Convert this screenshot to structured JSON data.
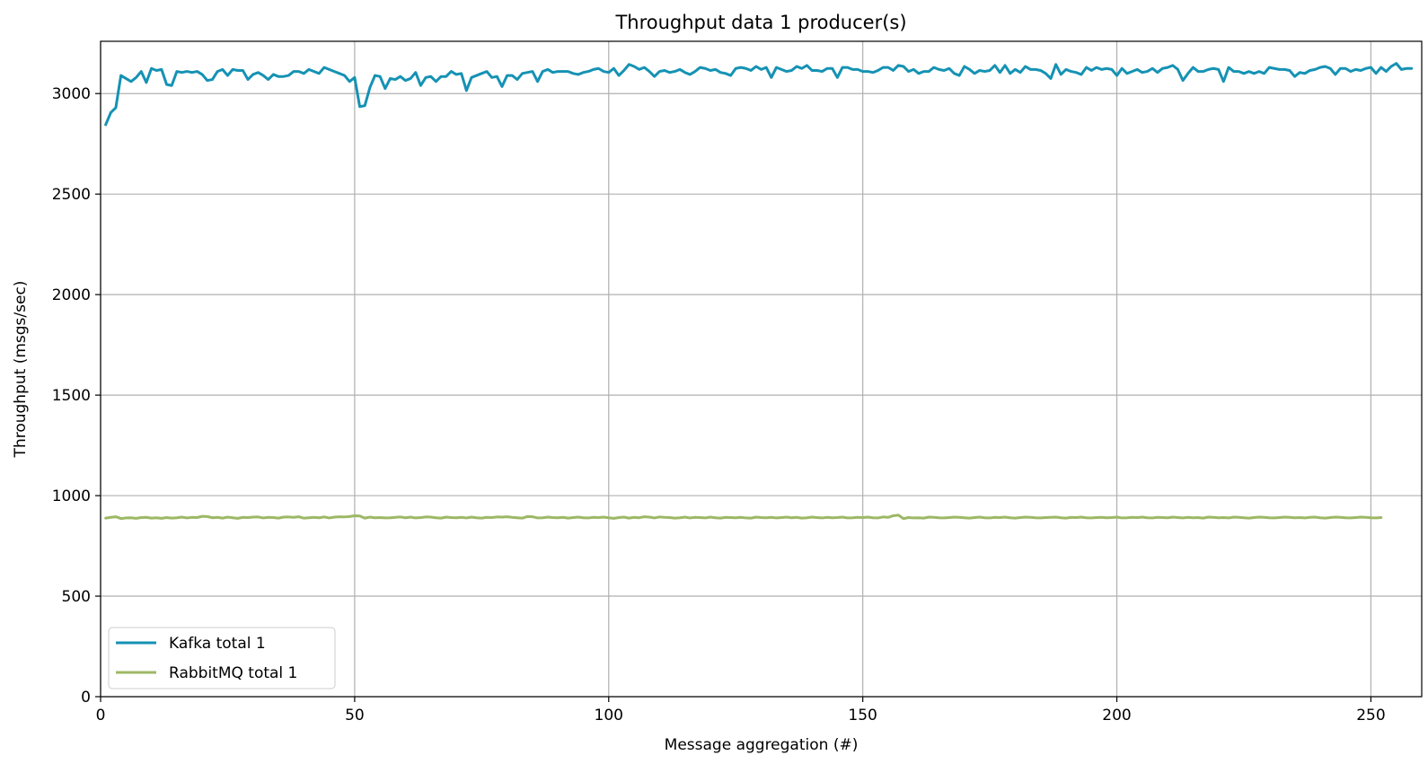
{
  "chart_data": {
    "type": "line",
    "title": "Throughput data 1 producer(s)",
    "xlabel": "Message aggregation (#)",
    "ylabel": "Throughput (msgs/sec)",
    "xlim": [
      0,
      260
    ],
    "ylim": [
      0,
      3260
    ],
    "xticks": [
      0,
      50,
      100,
      150,
      200,
      250
    ],
    "yticks": [
      0,
      500,
      1000,
      1500,
      2000,
      2500,
      3000
    ],
    "grid": true,
    "legend": "lower-left",
    "x_start": 1,
    "series": [
      {
        "name": "Kafka total 1",
        "color": "#1592b4",
        "values": [
          2845,
          2905,
          2930,
          3090,
          3075,
          3060,
          3080,
          3110,
          3055,
          3125,
          3115,
          3120,
          3045,
          3040,
          3110,
          3105,
          3110,
          3105,
          3110,
          3095,
          3065,
          3070,
          3110,
          3120,
          3090,
          3120,
          3115,
          3115,
          3070,
          3095,
          3105,
          3090,
          3070,
          3095,
          3085,
          3085,
          3090,
          3110,
          3110,
          3100,
          3120,
          3110,
          3100,
          3130,
          3120,
          3110,
          3100,
          3090,
          3060,
          3080,
          2935,
          2940,
          3030,
          3090,
          3085,
          3025,
          3075,
          3070,
          3085,
          3065,
          3075,
          3105,
          3040,
          3080,
          3085,
          3060,
          3085,
          3085,
          3110,
          3095,
          3100,
          3015,
          3080,
          3090,
          3100,
          3110,
          3080,
          3085,
          3035,
          3090,
          3090,
          3070,
          3100,
          3105,
          3110,
          3060,
          3110,
          3120,
          3105,
          3110,
          3110,
          3110,
          3100,
          3095,
          3105,
          3110,
          3120,
          3125,
          3110,
          3105,
          3125,
          3090,
          3115,
          3145,
          3135,
          3120,
          3130,
          3110,
          3085,
          3110,
          3115,
          3105,
          3110,
          3120,
          3105,
          3095,
          3110,
          3130,
          3125,
          3115,
          3120,
          3105,
          3100,
          3090,
          3125,
          3130,
          3125,
          3115,
          3135,
          3120,
          3130,
          3080,
          3130,
          3120,
          3110,
          3115,
          3135,
          3125,
          3140,
          3115,
          3115,
          3110,
          3125,
          3125,
          3080,
          3130,
          3130,
          3120,
          3120,
          3110,
          3110,
          3105,
          3115,
          3130,
          3130,
          3115,
          3140,
          3135,
          3110,
          3120,
          3100,
          3110,
          3110,
          3130,
          3120,
          3115,
          3125,
          3100,
          3090,
          3135,
          3120,
          3100,
          3115,
          3110,
          3115,
          3140,
          3105,
          3140,
          3100,
          3120,
          3105,
          3135,
          3120,
          3120,
          3115,
          3100,
          3075,
          3145,
          3095,
          3120,
          3110,
          3105,
          3095,
          3130,
          3115,
          3130,
          3120,
          3125,
          3120,
          3090,
          3125,
          3100,
          3110,
          3120,
          3105,
          3110,
          3125,
          3105,
          3125,
          3130,
          3140,
          3120,
          3065,
          3100,
          3130,
          3110,
          3110,
          3120,
          3125,
          3120,
          3060,
          3130,
          3110,
          3110,
          3100,
          3110,
          3100,
          3110,
          3100,
          3130,
          3125,
          3120,
          3120,
          3115,
          3085,
          3105,
          3100,
          3115,
          3120,
          3130,
          3135,
          3125,
          3095,
          3125,
          3125,
          3110,
          3120,
          3115,
          3125,
          3130,
          3100,
          3130,
          3110,
          3135,
          3150,
          3120,
          3125,
          3125
        ]
      },
      {
        "name": "RabbitMQ total 1",
        "color": "#9db865",
        "values": [
          888,
          892,
          895,
          886,
          889,
          890,
          887,
          891,
          892,
          888,
          890,
          887,
          891,
          888,
          890,
          893,
          889,
          892,
          891,
          897,
          896,
          890,
          892,
          888,
          893,
          890,
          887,
          892,
          891,
          893,
          894,
          889,
          892,
          891,
          888,
          893,
          894,
          892,
          895,
          888,
          890,
          892,
          890,
          894,
          889,
          893,
          895,
          894,
          896,
          900,
          899,
          888,
          893,
          890,
          891,
          889,
          890,
          892,
          894,
          890,
          893,
          889,
          891,
          894,
          893,
          890,
          888,
          893,
          891,
          890,
          892,
          889,
          893,
          890,
          888,
          892,
          891,
          894,
          893,
          895,
          892,
          890,
          888,
          896,
          895,
          889,
          890,
          893,
          891,
          890,
          892,
          888,
          891,
          893,
          890,
          889,
          892,
          891,
          893,
          890,
          887,
          891,
          893,
          888,
          892,
          890,
          895,
          893,
          889,
          894,
          892,
          891,
          888,
          890,
          893,
          889,
          892,
          891,
          889,
          893,
          890,
          888,
          892,
          891,
          890,
          892,
          889,
          888,
          893,
          891,
          890,
          892,
          889,
          891,
          893,
          890,
          892,
          888,
          890,
          893,
          891,
          889,
          892,
          890,
          891,
          893,
          889,
          890,
          892,
          891,
          893,
          890,
          889,
          894,
          892,
          900,
          903,
          886,
          891,
          889,
          890,
          888,
          893,
          892,
          890,
          889,
          891,
          893,
          892,
          890,
          888,
          891,
          893,
          890,
          889,
          892,
          891,
          893,
          890,
          888,
          891,
          893,
          892,
          890,
          889,
          891,
          892,
          893,
          890,
          888,
          892,
          891,
          893,
          890,
          889,
          891,
          892,
          890,
          891,
          893,
          889,
          890,
          892,
          891,
          893,
          890,
          889,
          892,
          891,
          890,
          893,
          891,
          889,
          892,
          890,
          891,
          888,
          893,
          892,
          890,
          891,
          889,
          893,
          892,
          890,
          888,
          891,
          893,
          892,
          890,
          889,
          891,
          893,
          892,
          890,
          891,
          889,
          892,
          893,
          890,
          888,
          891,
          893,
          892,
          890,
          889,
          891,
          893,
          892,
          890,
          889,
          891
        ]
      }
    ]
  }
}
